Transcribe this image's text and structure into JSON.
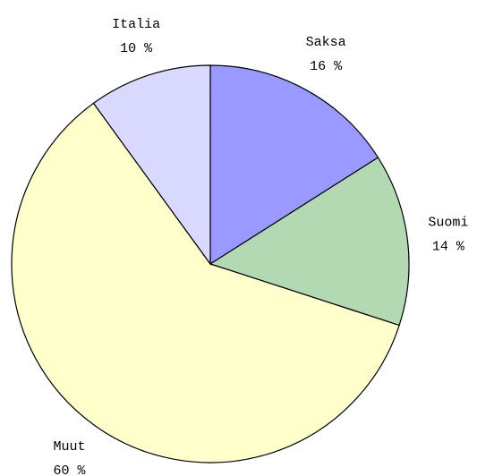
{
  "chart_data": {
    "type": "pie",
    "categories": [
      "Saksa",
      "Suomi",
      "Muut",
      "Italia"
    ],
    "values": [
      16,
      14,
      60,
      10
    ],
    "value_labels": [
      "16 %",
      "14 %",
      "60 %",
      "10 %"
    ],
    "colors": [
      "#9999ff",
      "#b3d9b3",
      "#ffffcc",
      "#d9d9ff"
    ]
  }
}
